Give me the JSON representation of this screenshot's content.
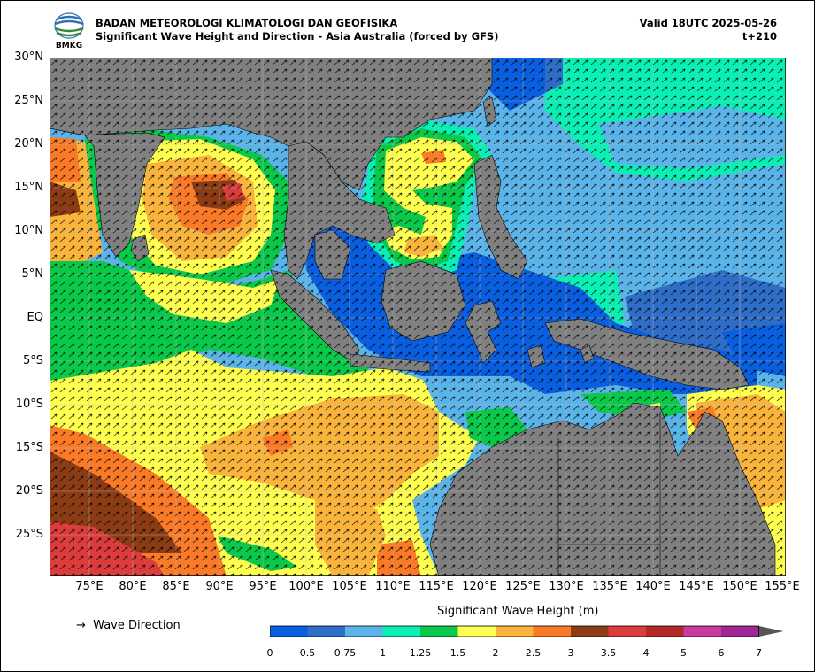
{
  "header": {
    "agency": "BADAN METEOROLOGI KLIMATOLOGI DAN GEOFISIKA",
    "subtitle": "Significant Wave Height and Direction - Asia Australia (forced by GFS)",
    "valid": "Valid 18UTC 2025-05-26",
    "lead": "t+210",
    "logo_text": "BMKG"
  },
  "map": {
    "lat_labels": [
      "30°N",
      "25°N",
      "20°N",
      "15°N",
      "10°N",
      "5°N",
      "EQ",
      "5°S",
      "10°S",
      "15°S",
      "20°S",
      "25°S"
    ],
    "lon_labels": [
      "75°E",
      "80°E",
      "85°E",
      "90°E",
      "95°E",
      "100°E",
      "105°E",
      "110°E",
      "115°E",
      "120°E",
      "125°E",
      "130°E",
      "135°E",
      "140°E",
      "145°E",
      "150°E",
      "155°E"
    ],
    "land_color": "#808080",
    "arrow_color": "#000000"
  },
  "legend": {
    "arrow_symbol": "→",
    "direction_label": "Wave Direction",
    "colorbar_title": "Significant Wave Height (m)",
    "levels": [
      "0",
      "0.5",
      "0.75",
      "1",
      "1.25",
      "1.5",
      "2",
      "2.5",
      "3",
      "3.5",
      "4",
      "5",
      "6",
      "7"
    ],
    "colors": [
      "#0a5ee0",
      "#2f6ec8",
      "#5ab4ea",
      "#0af0b4",
      "#0ac84a",
      "#ffff50",
      "#fab43c",
      "#fa7a28",
      "#8c3c14",
      "#dc3c3c",
      "#b42828",
      "#c83ca0",
      "#a02896"
    ]
  }
}
